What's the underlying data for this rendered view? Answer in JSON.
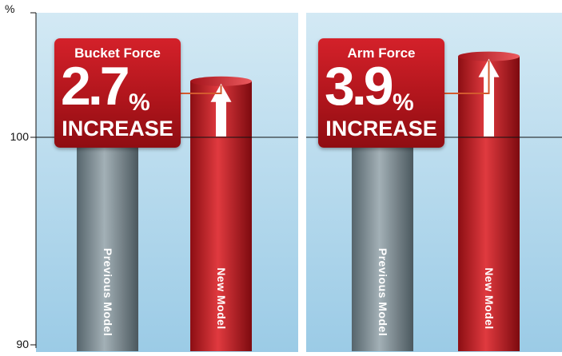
{
  "chart_data": {
    "type": "bar",
    "y_unit_label": "%",
    "ylim": [
      90,
      106
    ],
    "y_ticks": [
      100,
      90
    ],
    "reference_line": 100,
    "grid": false,
    "panels": [
      {
        "title": "Bucket Force",
        "increase_value": "2.7",
        "increase_unit": "%",
        "increase_label": "INCREASE",
        "categories": [
          "Previous Model",
          "New Model"
        ],
        "values": [
          100,
          102.7
        ]
      },
      {
        "title": "Arm Force",
        "increase_value": "3.9",
        "increase_unit": "%",
        "increase_label": "INCREASE",
        "categories": [
          "Previous Model",
          "New Model"
        ],
        "values": [
          100,
          103.9
        ]
      }
    ]
  },
  "colors": {
    "background_top": "#c9e3f1",
    "background_bottom": "#9fcde7",
    "previous_bar": "#7f8d94",
    "new_bar": "#c0161f",
    "callout": "#b0151c",
    "leader_line": "#d35a2e"
  }
}
